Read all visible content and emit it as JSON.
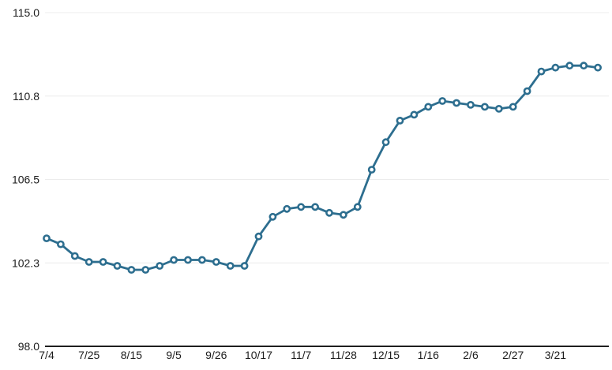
{
  "chart_data": {
    "type": "line",
    "title": "",
    "legend": "none",
    "grid": "horizontal",
    "marker": "open-circle",
    "x_tick_labels": [
      "7/4",
      "7/25",
      "8/15",
      "9/5",
      "9/26",
      "10/17",
      "11/7",
      "11/28",
      "12/15",
      "1/16",
      "2/6",
      "2/27",
      "3/21"
    ],
    "x_tick_point_indices": [
      0,
      3,
      6,
      9,
      12,
      15,
      18,
      21,
      24,
      27,
      30,
      33,
      36
    ],
    "values": [
      103.5,
      103.2,
      102.6,
      102.3,
      102.3,
      102.1,
      101.9,
      101.9,
      102.1,
      102.4,
      102.4,
      102.4,
      102.3,
      102.1,
      102.1,
      103.6,
      104.6,
      105.0,
      105.1,
      105.1,
      104.8,
      104.7,
      105.1,
      107.0,
      108.4,
      109.5,
      109.8,
      110.2,
      110.5,
      110.4,
      110.3,
      110.2,
      110.1,
      110.2,
      111.0,
      112.0,
      112.2,
      112.3,
      112.3,
      112.2
    ],
    "y_tick_labels": [
      "98.0",
      "102.3",
      "106.5",
      "110.8",
      "115.0"
    ],
    "y_tick_values": [
      98.0,
      102.25,
      106.5,
      110.75,
      115.0
    ],
    "ylim": [
      98.0,
      115.0
    ],
    "colors": {
      "line": "#2d6e8f",
      "marker_fill": "#ffffff",
      "grid": "#ececec",
      "axis": "#1f1f1f",
      "tick_text": "#1d1d1d",
      "background": "#ffffff"
    }
  }
}
